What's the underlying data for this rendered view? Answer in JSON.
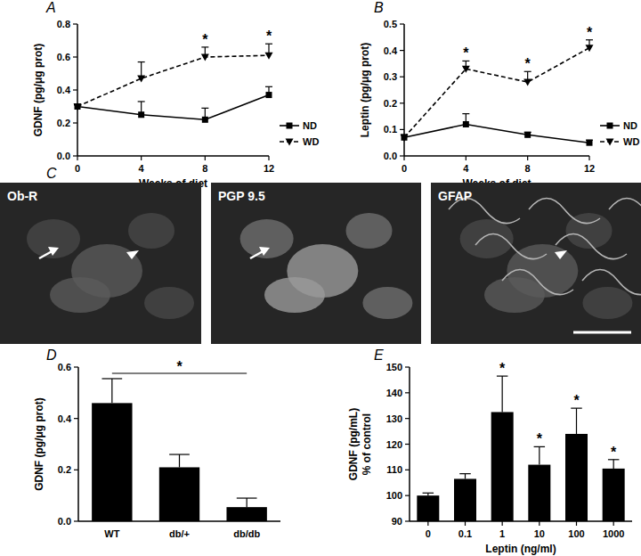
{
  "chart_data": [
    {
      "type": "line",
      "title": "A",
      "xlabel": "Weeks of diet",
      "ylabel": "GDNF (pg/μg prot)",
      "x": [
        0,
        4,
        8,
        12
      ],
      "xlim": [
        0,
        12
      ],
      "xticks": [
        0,
        4,
        8,
        12
      ],
      "ylim": [
        0,
        0.8
      ],
      "yticks": [
        {
          "value": 0,
          "label": "0.0"
        },
        0.2,
        0.4,
        0.6,
        0.8
      ],
      "legend": "right",
      "series": [
        {
          "name": "ND",
          "color": "#000000",
          "line_style": "solid",
          "marker": "square",
          "values": [
            0.3,
            0.25,
            0.22,
            0.37
          ],
          "errors": [
            0.01,
            0.08,
            0.07,
            0.05
          ]
        },
        {
          "name": "WD",
          "color": "#000000",
          "line_style": "dashed",
          "marker": "triangle-down",
          "values": [
            0.3,
            0.47,
            0.6,
            0.61
          ],
          "errors": [
            0.01,
            0.1,
            0.06,
            0.07
          ]
        }
      ],
      "annotations": [
        {
          "x": 8,
          "text": "*"
        },
        {
          "x": 12,
          "text": "*"
        }
      ]
    },
    {
      "type": "line",
      "title": "B",
      "xlabel": "Weeks of diet",
      "ylabel": "Leptin (pg/μg prot)",
      "x": [
        0,
        4,
        8,
        12
      ],
      "xlim": [
        0,
        12
      ],
      "xticks": [
        0,
        4,
        8,
        12
      ],
      "ylim": [
        0,
        0.5
      ],
      "yticks": [
        {
          "value": 0,
          "label": "0.0"
        },
        0.1,
        0.2,
        0.3,
        0.4,
        0.5
      ],
      "legend": "right",
      "series": [
        {
          "name": "ND",
          "color": "#000000",
          "line_style": "solid",
          "marker": "square",
          "values": [
            0.07,
            0.12,
            0.08,
            0.05
          ],
          "errors": [
            0.01,
            0.04,
            0.01,
            0.01
          ]
        },
        {
          "name": "WD",
          "color": "#000000",
          "line_style": "dashed",
          "marker": "triangle-down",
          "values": [
            0.07,
            0.33,
            0.28,
            0.41
          ],
          "errors": [
            0.01,
            0.03,
            0.04,
            0.03
          ]
        }
      ],
      "annotations": [
        {
          "x": 4,
          "text": "*"
        },
        {
          "x": 8,
          "text": "*"
        },
        {
          "x": 12,
          "text": "*"
        }
      ]
    },
    {
      "type": "bar",
      "title": "D",
      "ylabel": "GDNF (pg/μg prot)",
      "categories": [
        "WT",
        "db/+",
        "db/db"
      ],
      "values": [
        0.46,
        0.21,
        0.055
      ],
      "errors": [
        0.095,
        0.05,
        0.035
      ],
      "color": "#000000",
      "ylim": [
        0,
        0.6
      ],
      "yticks": [
        {
          "value": 0,
          "label": "0.0"
        },
        0.2,
        0.4,
        0.6
      ],
      "annotations": [
        {
          "from": "WT",
          "to": "db/db",
          "text": "*"
        }
      ]
    },
    {
      "type": "bar",
      "title": "E",
      "xlabel": "Leptin (ng/ml)",
      "ylabel": [
        "GDNF (pg/mL)",
        "% of control"
      ],
      "categories": [
        "0",
        "0.1",
        "1",
        "10",
        "100",
        "1000"
      ],
      "values": [
        100,
        106.5,
        132.5,
        112,
        124,
        110.5
      ],
      "errors": [
        1,
        2,
        14,
        7,
        10,
        3.5
      ],
      "color": "#000000",
      "ylim": [
        90,
        150
      ],
      "yticks": [
        90,
        100,
        110,
        120,
        130,
        140,
        150
      ],
      "annotations": [
        {
          "category": "1",
          "text": "*"
        },
        {
          "category": "10",
          "text": "*"
        },
        {
          "category": "100",
          "text": "*"
        },
        {
          "category": "1000",
          "text": "*"
        }
      ]
    }
  ],
  "image_panel": {
    "title": "C",
    "images": [
      "Ob-R",
      "PGP 9.5",
      "GFAP"
    ]
  }
}
